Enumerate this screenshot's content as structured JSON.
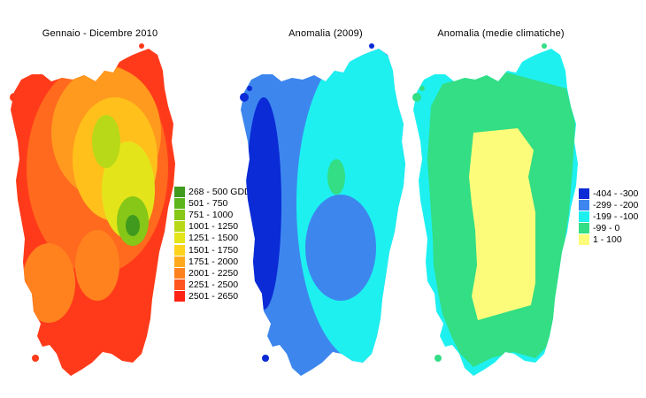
{
  "titles": {
    "map1": "Gennaio - Dicembre 2010",
    "map2": "Anomalia (2009)",
    "map3": "Anomalia (medie climatiche)"
  },
  "legend_gdd": [
    {
      "label": "268 - 500 GDD",
      "color": "#3f9a1e"
    },
    {
      "label": "501 - 750",
      "color": "#5cb51a"
    },
    {
      "label": "751 - 1000",
      "color": "#86c718"
    },
    {
      "label": "1001 - 1250",
      "color": "#b8d917"
    },
    {
      "label": "1251 - 1500",
      "color": "#e3e51a"
    },
    {
      "label": "1501 - 1750",
      "color": "#ffd21c"
    },
    {
      "label": "1751 - 2000",
      "color": "#ffaa1e"
    },
    {
      "label": "2001 - 2250",
      "color": "#ff821e"
    },
    {
      "label": "2251 - 2500",
      "color": "#ff551e"
    },
    {
      "label": "2501 - 2650",
      "color": "#ff2316"
    }
  ],
  "legend_anomaly": [
    {
      "label": "-404 - -300",
      "color": "#0a2bd6"
    },
    {
      "label": "-299 - -200",
      "color": "#3d86ee"
    },
    {
      "label": "-199 - -100",
      "color": "#1ef0f0"
    },
    {
      "label": "-99 - 0",
      "color": "#33de84"
    },
    {
      "label": "1 - 100",
      "color": "#fdfc7a"
    }
  ]
}
